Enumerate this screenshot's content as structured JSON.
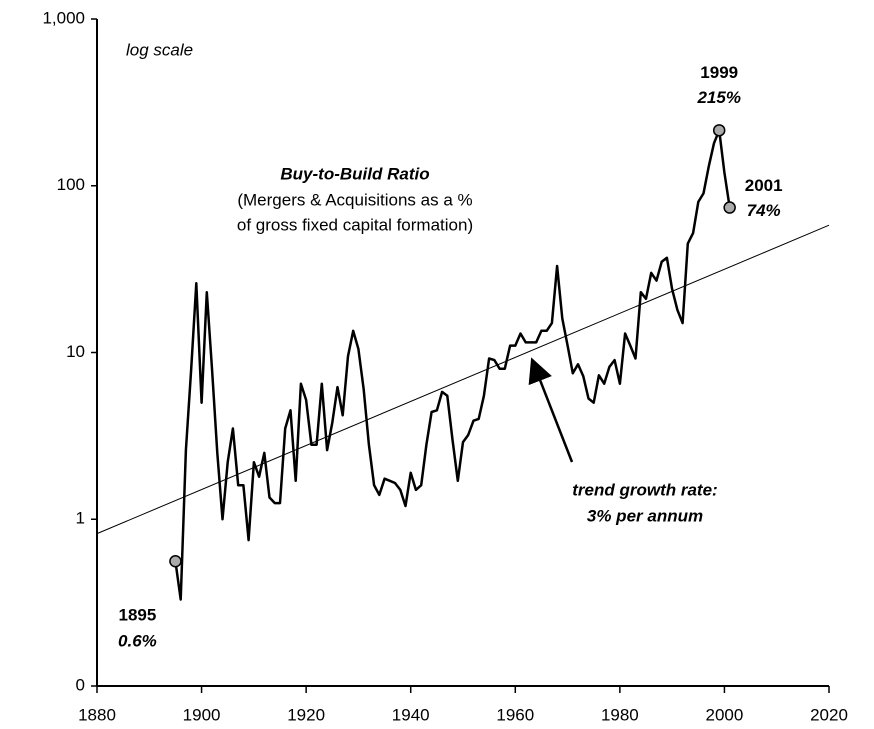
{
  "chart_data": {
    "type": "line",
    "title": "Buy-to-Build Ratio",
    "subtitle": [
      "(Mergers & Acquisitions as a %",
      "of gross fixed capital formation)"
    ],
    "scale_note": "log scale",
    "log_y": true,
    "color": "#000000",
    "x": [
      1895,
      1896,
      1897,
      1898,
      1899,
      1900,
      1901,
      1902,
      1903,
      1904,
      1905,
      1906,
      1907,
      1908,
      1909,
      1910,
      1911,
      1912,
      1913,
      1914,
      1915,
      1916,
      1917,
      1918,
      1919,
      1920,
      1921,
      1922,
      1923,
      1924,
      1925,
      1926,
      1927,
      1928,
      1929,
      1930,
      1931,
      1932,
      1933,
      1934,
      1935,
      1936,
      1937,
      1938,
      1939,
      1940,
      1941,
      1942,
      1943,
      1944,
      1945,
      1946,
      1947,
      1948,
      1949,
      1950,
      1951,
      1952,
      1953,
      1954,
      1955,
      1956,
      1957,
      1958,
      1959,
      1960,
      1961,
      1962,
      1963,
      1964,
      1965,
      1966,
      1967,
      1968,
      1969,
      1970,
      1971,
      1972,
      1973,
      1974,
      1975,
      1976,
      1977,
      1978,
      1979,
      1980,
      1981,
      1982,
      1983,
      1984,
      1985,
      1986,
      1987,
      1988,
      1989,
      1990,
      1991,
      1992,
      1993,
      1994,
      1995,
      1996,
      1997,
      1998,
      1999,
      2000,
      2001
    ],
    "values": [
      0.56,
      0.33,
      2.6,
      7.8,
      26,
      5,
      23,
      8,
      2.5,
      1.0,
      2.2,
      3.5,
      1.6,
      1.6,
      0.75,
      2.2,
      1.8,
      2.5,
      1.35,
      1.25,
      1.25,
      3.5,
      4.5,
      1.7,
      6.5,
      5.2,
      2.8,
      2.8,
      6.5,
      2.6,
      3.8,
      6.2,
      4.2,
      9.5,
      13.5,
      10.5,
      6,
      2.8,
      1.6,
      1.4,
      1.75,
      1.7,
      1.65,
      1.5,
      1.2,
      1.9,
      1.5,
      1.6,
      2.8,
      4.4,
      4.5,
      5.8,
      5.5,
      3.0,
      1.7,
      2.9,
      3.2,
      3.9,
      4.0,
      5.5,
      9.2,
      9.0,
      8.0,
      8.0,
      11,
      11,
      13,
      11.5,
      11.5,
      11.5,
      13.5,
      13.5,
      15,
      33,
      16,
      11,
      7.5,
      8.5,
      7.2,
      5.3,
      5.0,
      7.3,
      6.5,
      8.2,
      9.0,
      6.5,
      13,
      11,
      9.2,
      23,
      21,
      30,
      27,
      35,
      37,
      24,
      18,
      15,
      45,
      52,
      80,
      90,
      130,
      180,
      215,
      120,
      74
    ],
    "trend": {
      "label": [
        "trend growth rate:",
        "3% per annum"
      ],
      "x": [
        1880,
        2020
      ],
      "values": [
        0.82,
        58
      ]
    },
    "highlights": [
      {
        "x": 1895,
        "label": "0.6%"
      },
      {
        "x": 1999,
        "label": "215%"
      },
      {
        "x": 2001,
        "label": "74%"
      }
    ],
    "xlim": [
      1880,
      2020
    ],
    "xticks": [
      1880,
      1900,
      1920,
      1940,
      1960,
      1980,
      2000,
      2020
    ],
    "ylim": [
      0.1,
      1000
    ],
    "yticks": [
      {
        "value": 0.1,
        "label": "0"
      },
      1,
      10,
      100,
      {
        "value": 1000,
        "label": "1,000"
      }
    ]
  }
}
